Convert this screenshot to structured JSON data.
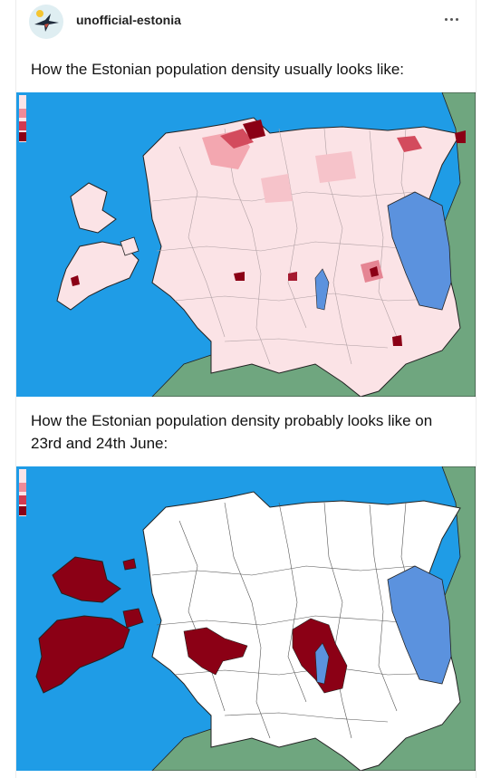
{
  "post": {
    "blog_name": "unofficial-estonia",
    "caption_1": "How the Estonian population density usually looks like:",
    "caption_2": "How the Estonian population density probably looks like on 23rd and 24th June:"
  },
  "icons": {
    "avatar": "swallow-avatar-icon",
    "more": "ellipsis-icon"
  },
  "colors": {
    "sea": "#1f9ce6",
    "land_neighbor": "#6fa67f",
    "lake": "#5b92de",
    "density_high": "#8b0015",
    "density_low": "#fce7ea"
  }
}
